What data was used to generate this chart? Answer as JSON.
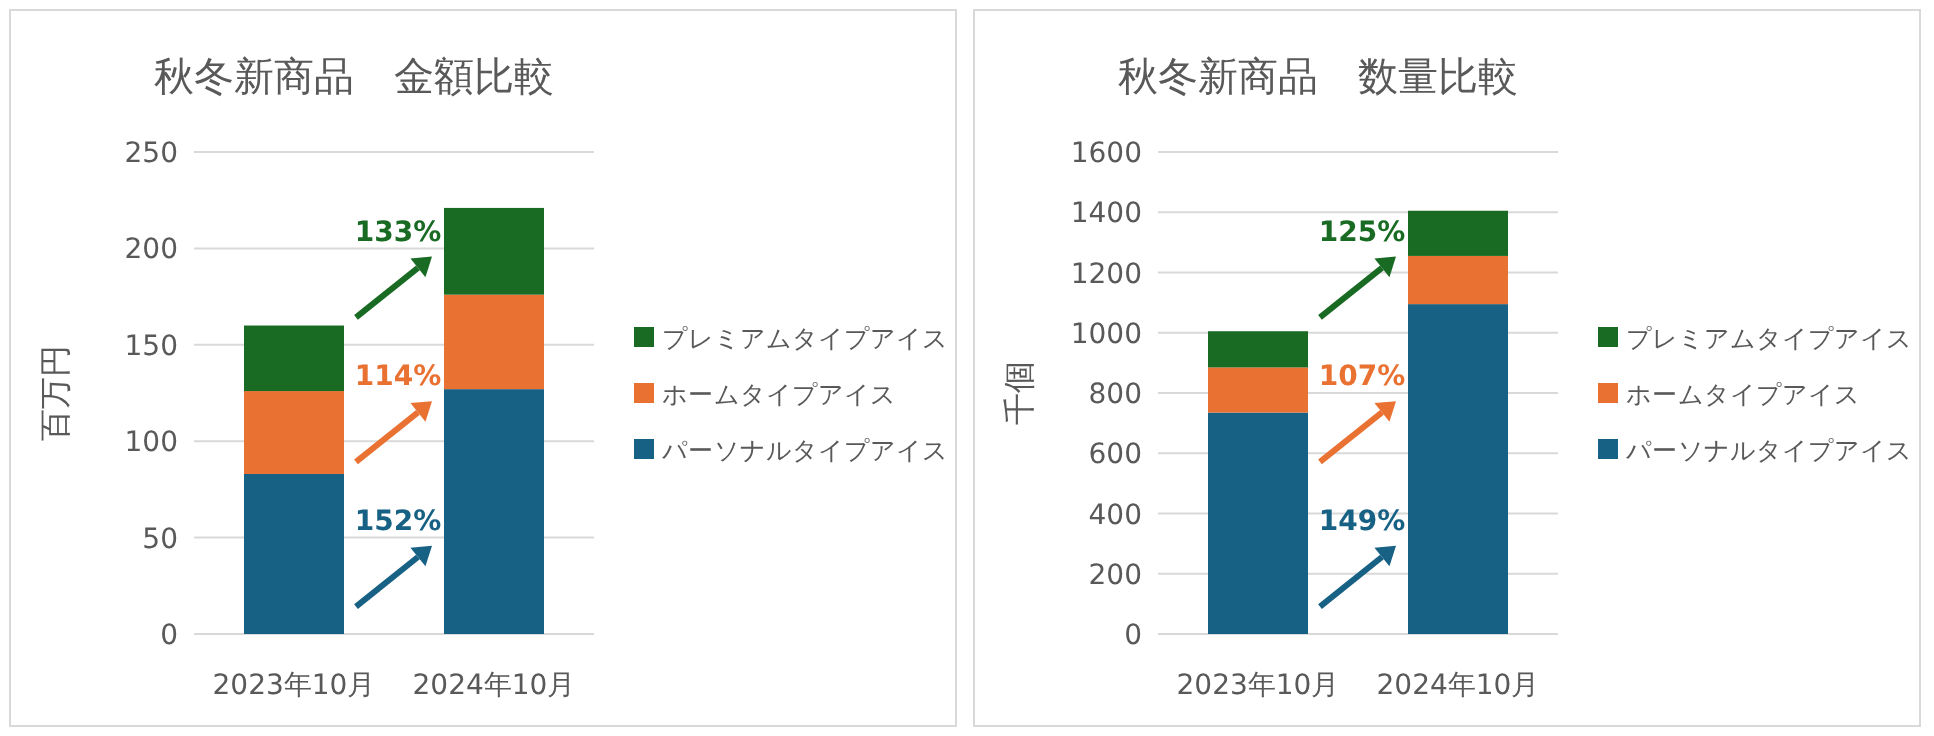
{
  "chart_data": [
    {
      "type": "bar",
      "title": "秋冬新商品　金額比較",
      "ylabel": "百万円",
      "categories": [
        "2023年10月",
        "2024年10月"
      ],
      "stacked": true,
      "ylim": [
        0,
        250
      ],
      "yticks": [
        0,
        50,
        100,
        150,
        200,
        250
      ],
      "grid": "y",
      "legend": "right",
      "series": [
        {
          "name": "パーソナルタイプアイス",
          "color": "#176184",
          "values": [
            83,
            127
          ]
        },
        {
          "name": "ホームタイプアイス",
          "color": "#e97132",
          "values": [
            43,
            49
          ]
        },
        {
          "name": "プレミアムタイプアイス",
          "color": "#196b24",
          "values": [
            34,
            45
          ]
        }
      ],
      "annotations": [
        "152%",
        "114%",
        "133%"
      ]
    },
    {
      "type": "bar",
      "title": "秋冬新商品　数量比較",
      "ylabel": "千個",
      "categories": [
        "2023年10月",
        "2024年10月"
      ],
      "stacked": true,
      "ylim": [
        0,
        1600
      ],
      "yticks": [
        0,
        200,
        400,
        600,
        800,
        1000,
        1200,
        1400,
        1600
      ],
      "grid": "y",
      "legend": "right",
      "series": [
        {
          "name": "パーソナルタイプアイス",
          "color": "#176184",
          "values": [
            735,
            1095
          ]
        },
        {
          "name": "ホームタイプアイス",
          "color": "#e97132",
          "values": [
            150,
            160
          ]
        },
        {
          "name": "プレミアムタイプアイス",
          "color": "#196b24",
          "values": [
            120,
            150
          ]
        }
      ],
      "annotations": [
        "149%",
        "107%",
        "125%"
      ]
    }
  ]
}
